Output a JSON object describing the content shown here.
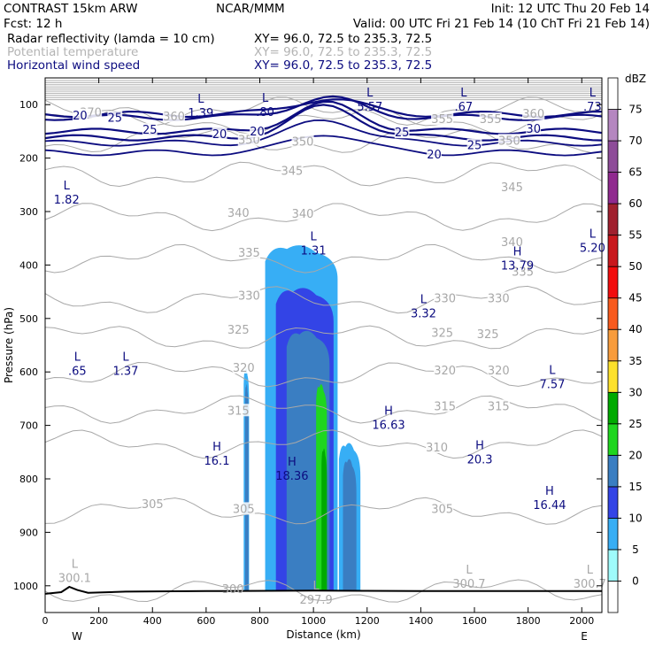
{
  "header": {
    "left1": "CONTRAST 15km ARW",
    "center1": "NCAR/MMM",
    "right1": "Init: 12 UTC Thu 20 Feb 14",
    "left2": "Fcst:    12 h",
    "right2": "Valid: 00 UTC Fri 21 Feb 14 (10 ChT Fri 21 Feb 14)",
    "fields": [
      {
        "label": "Radar reflectivity (lamda = 10 cm)",
        "xy": "XY=   96.0, 72.5 to 235.3, 72.5",
        "color": "#000000"
      },
      {
        "label": "Potential temperature",
        "xy": "XY=   96.0, 72.5 to 235.3, 72.5",
        "color": "#b4b4b4"
      },
      {
        "label": "Horizontal wind speed",
        "xy": "XY=   96.0, 72.5 to 235.3, 72.5",
        "color": "#0c0c80"
      }
    ]
  },
  "chart_data": {
    "type": "vertical cross-section (filled contours + line contours)",
    "xlabel": "Distance (km)",
    "ylabel": "Pressure (hPa)",
    "x_ticks": [
      0,
      200,
      400,
      600,
      800,
      1000,
      1200,
      1400,
      1600,
      1800,
      2000
    ],
    "x_range": [
      0,
      2075
    ],
    "y_ticks": [
      100,
      200,
      300,
      400,
      500,
      600,
      700,
      800,
      900,
      1000
    ],
    "y_range": [
      1050,
      50
    ],
    "end_labels": {
      "left": "W",
      "right": "E"
    },
    "colorbar": {
      "unit": "dBZ",
      "levels": [
        0,
        5,
        10,
        15,
        20,
        25,
        30,
        35,
        40,
        45,
        50,
        55,
        60,
        65,
        70,
        75
      ],
      "colors": [
        "#ffffff",
        "#9ffbfb",
        "#37aef5",
        "#3344e6",
        "#3a7ec2",
        "#1fd61f",
        "#00aa00",
        "#fde12c",
        "#f89c3c",
        "#f85a1d",
        "#f20d0d",
        "#c9181d",
        "#a0202e",
        "#902a8f",
        "#8e4c99",
        "#b587c0",
        "#ffffff"
      ]
    },
    "reflectivity_cells": [
      {
        "x0": 740,
        "x1": 760,
        "p_top": 590,
        "p_bot": 1010,
        "dbz": 5
      },
      {
        "x0": 745,
        "x1": 758,
        "p_top": 620,
        "p_bot": 1010,
        "dbz": 15
      },
      {
        "x0": 820,
        "x1": 1090,
        "p_top": 360,
        "p_bot": 1010,
        "dbz": 5
      },
      {
        "x0": 860,
        "x1": 1075,
        "p_top": 440,
        "p_bot": 1010,
        "dbz": 10
      },
      {
        "x0": 900,
        "x1": 1060,
        "p_top": 520,
        "p_bot": 1010,
        "dbz": 15
      },
      {
        "x0": 1010,
        "x1": 1050,
        "p_top": 620,
        "p_bot": 1010,
        "dbz": 20
      },
      {
        "x0": 1030,
        "x1": 1050,
        "p_top": 740,
        "p_bot": 1010,
        "dbz": 25
      },
      {
        "x0": 1095,
        "x1": 1175,
        "p_top": 730,
        "p_bot": 1010,
        "dbz": 5
      },
      {
        "x0": 1110,
        "x1": 1160,
        "p_top": 760,
        "p_bot": 1010,
        "dbz": 15
      }
    ],
    "theta_contours": [
      {
        "value": 300,
        "p": 1010
      },
      {
        "value": 305,
        "p": 860
      },
      {
        "value": 310,
        "p": 735
      },
      {
        "value": 315,
        "p": 670
      },
      {
        "value": 320,
        "p": 605
      },
      {
        "value": 325,
        "p": 535
      },
      {
        "value": 330,
        "p": 465
      },
      {
        "value": 335,
        "p": 388
      },
      {
        "value": 340,
        "p": 310
      },
      {
        "value": 345,
        "p": 230
      },
      {
        "value": 350,
        "p": 168
      },
      {
        "value": 355,
        "p": 130
      },
      {
        "value": 360,
        "p": 112
      }
    ],
    "theta_labels": [
      {
        "text": "305",
        "x": 400,
        "p": 848
      },
      {
        "text": "305",
        "x": 740,
        "p": 857
      },
      {
        "text": "305",
        "x": 1480,
        "p": 857
      },
      {
        "text": "310",
        "x": 1460,
        "p": 742
      },
      {
        "text": "315",
        "x": 720,
        "p": 673
      },
      {
        "text": "315",
        "x": 1490,
        "p": 665
      },
      {
        "text": "315",
        "x": 1690,
        "p": 665
      },
      {
        "text": "320",
        "x": 740,
        "p": 593
      },
      {
        "text": "320",
        "x": 1490,
        "p": 598
      },
      {
        "text": "320",
        "x": 1690,
        "p": 598
      },
      {
        "text": "325",
        "x": 720,
        "p": 522
      },
      {
        "text": "325",
        "x": 1480,
        "p": 528
      },
      {
        "text": "325",
        "x": 1650,
        "p": 530
      },
      {
        "text": "330",
        "x": 760,
        "p": 458
      },
      {
        "text": "330",
        "x": 1490,
        "p": 463
      },
      {
        "text": "330",
        "x": 1690,
        "p": 463
      },
      {
        "text": "335",
        "x": 760,
        "p": 378
      },
      {
        "text": "335",
        "x": 1780,
        "p": 413
      },
      {
        "text": "340",
        "x": 720,
        "p": 303
      },
      {
        "text": "340",
        "x": 960,
        "p": 305
      },
      {
        "text": "340",
        "x": 1740,
        "p": 358
      },
      {
        "text": "345",
        "x": 920,
        "p": 225
      },
      {
        "text": "345",
        "x": 1740,
        "p": 255
      },
      {
        "text": "350",
        "x": 760,
        "p": 167
      },
      {
        "text": "350",
        "x": 960,
        "p": 170
      },
      {
        "text": "350",
        "x": 1730,
        "p": 168
      },
      {
        "text": "355",
        "x": 1480,
        "p": 128
      },
      {
        "text": "355",
        "x": 1660,
        "p": 128
      },
      {
        "text": "360",
        "x": 1820,
        "p": 118
      },
      {
        "text": "360",
        "x": 480,
        "p": 123
      },
      {
        "text": "370",
        "x": 170,
        "p": 115
      }
    ],
    "wind_contours": [
      {
        "value": 20,
        "speed_label": "20"
      },
      {
        "value": 25,
        "speed_label": "25"
      },
      {
        "value": 30,
        "speed_label": "30"
      }
    ],
    "wind_labels": [
      {
        "text": "20",
        "x": 130,
        "p": 121
      },
      {
        "text": "25",
        "x": 260,
        "p": 125
      },
      {
        "text": "25",
        "x": 390,
        "p": 148
      },
      {
        "text": "20",
        "x": 650,
        "p": 156
      },
      {
        "text": "20",
        "x": 790,
        "p": 151
      },
      {
        "text": "25",
        "x": 1330,
        "p": 153
      },
      {
        "text": "25",
        "x": 1600,
        "p": 177
      },
      {
        "text": "20",
        "x": 1450,
        "p": 194
      },
      {
        "text": "30",
        "x": 1820,
        "p": 146
      }
    ],
    "extrema": [
      {
        "type": "L",
        "value": "1.39",
        "x": 580,
        "p": 110,
        "set": "wind"
      },
      {
        "type": "L",
        "value": ".80",
        "x": 820,
        "p": 108,
        "set": "wind"
      },
      {
        "type": "L",
        "value": "5.57",
        "x": 1210,
        "p": 98,
        "set": "wind"
      },
      {
        "type": "L",
        "value": ".67",
        "x": 1560,
        "p": 98,
        "set": "wind"
      },
      {
        "type": "L",
        "value": ".73",
        "x": 2040,
        "p": 98,
        "set": "wind"
      },
      {
        "type": "L",
        "value": "1.82",
        "x": 80,
        "p": 272,
        "set": "wind"
      },
      {
        "type": "L",
        "value": "1.31",
        "x": 1000,
        "p": 367,
        "set": "wind"
      },
      {
        "type": "H",
        "value": "13.79",
        "x": 1760,
        "p": 395,
        "set": "wind"
      },
      {
        "type": "L",
        "value": "5.20",
        "x": 2040,
        "p": 362,
        "set": "wind"
      },
      {
        "type": "L",
        "value": "3.32",
        "x": 1410,
        "p": 485,
        "set": "wind"
      },
      {
        "type": "L",
        "value": ".65",
        "x": 120,
        "p": 592,
        "set": "wind"
      },
      {
        "type": "L",
        "value": "1.37",
        "x": 300,
        "p": 592,
        "set": "wind"
      },
      {
        "type": "L",
        "value": "7.57",
        "x": 1890,
        "p": 617,
        "set": "wind"
      },
      {
        "type": "H",
        "value": "16.63",
        "x": 1280,
        "p": 693,
        "set": "wind"
      },
      {
        "type": "H",
        "value": "16.1",
        "x": 640,
        "p": 760,
        "set": "wind"
      },
      {
        "type": "H",
        "value": "18.36",
        "x": 920,
        "p": 788,
        "set": "wind"
      },
      {
        "type": "H",
        "value": "20.3",
        "x": 1620,
        "p": 758,
        "set": "wind"
      },
      {
        "type": "H",
        "value": "16.44",
        "x": 1880,
        "p": 843,
        "set": "wind"
      },
      {
        "type": "L",
        "value": "300.1",
        "x": 110,
        "p": 980,
        "set": "theta"
      },
      {
        "type": "L",
        "value": "297.9",
        "x": 1010,
        "p": 1020,
        "set": "theta"
      },
      {
        "type": "L",
        "value": "300.7",
        "x": 1580,
        "p": 990,
        "set": "theta"
      },
      {
        "type": "L",
        "value": "300.7",
        "x": 2030,
        "p": 990,
        "set": "theta"
      }
    ],
    "extra_labels": [
      {
        "text": "300",
        "x": 700,
        "p": 1007,
        "set": "theta"
      }
    ],
    "terrain": [
      [
        0,
        1015
      ],
      [
        60,
        1012
      ],
      [
        90,
        1002
      ],
      [
        120,
        1008
      ],
      [
        160,
        1013
      ],
      [
        300,
        1011
      ],
      [
        600,
        1010
      ],
      [
        1000,
        1009
      ],
      [
        1400,
        1010
      ],
      [
        2075,
        1010
      ]
    ]
  }
}
